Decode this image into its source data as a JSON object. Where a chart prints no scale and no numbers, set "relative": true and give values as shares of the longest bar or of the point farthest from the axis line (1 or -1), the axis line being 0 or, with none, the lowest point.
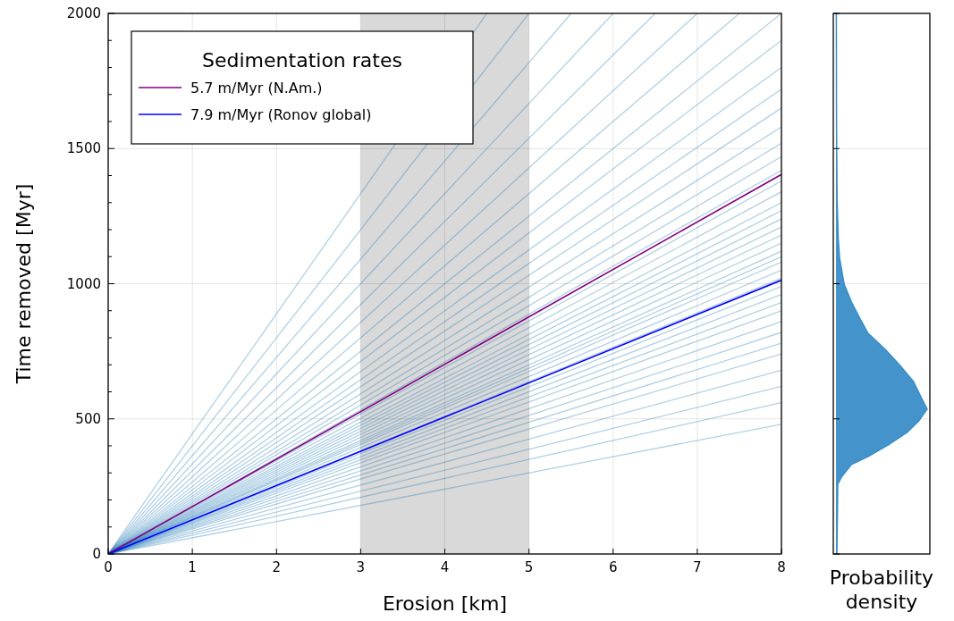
{
  "chart_data": [
    {
      "type": "line",
      "xlabel": "Erosion [km]",
      "ylabel": "Time removed [Myr]",
      "legend_title": "Sedimentation rates",
      "legend": "top left",
      "grid": true,
      "xlim": [
        0,
        8
      ],
      "xticks": [
        0,
        1,
        2,
        3,
        4,
        5,
        6,
        7,
        8
      ],
      "ylim": [
        0,
        2000
      ],
      "yticks": [
        0,
        {
          "value": 100,
          "label": null
        },
        {
          "value": 200,
          "label": null
        },
        {
          "value": 300,
          "label": null
        },
        {
          "value": 400,
          "label": null
        },
        500,
        {
          "value": 600,
          "label": null
        },
        {
          "value": 700,
          "label": null
        },
        {
          "value": 800,
          "label": null
        },
        {
          "value": 900,
          "label": null
        },
        1000,
        {
          "value": 1100,
          "label": null
        },
        {
          "value": 1200,
          "label": null
        },
        {
          "value": 1300,
          "label": null
        },
        {
          "value": 1400,
          "label": null
        },
        1500,
        {
          "value": 1600,
          "label": null
        },
        {
          "value": 1700,
          "label": null
        },
        {
          "value": 1800,
          "label": null
        },
        {
          "value": 1900,
          "label": null
        },
        2000
      ],
      "bands": [
        {
          "axis": "x",
          "from": 3,
          "to": 5,
          "color": "#d9d9d9"
        }
      ],
      "series": [
        {
          "color": "#1f77b4",
          "x": [
            0,
            8
          ],
          "values": [
            0,
            480
          ]
        },
        {
          "color": "#1f77b4",
          "x": [
            0,
            8
          ],
          "values": [
            0,
            560
          ]
        },
        {
          "color": "#1f77b4",
          "x": [
            0,
            8
          ],
          "values": [
            0,
            620
          ]
        },
        {
          "color": "#1f77b4",
          "x": [
            0,
            8
          ],
          "values": [
            0,
            680
          ]
        },
        {
          "color": "#1f77b4",
          "x": [
            0,
            8
          ],
          "values": [
            0,
            740
          ]
        },
        {
          "color": "#1f77b4",
          "x": [
            0,
            8
          ],
          "values": [
            0,
            780
          ]
        },
        {
          "color": "#1f77b4",
          "x": [
            0,
            8
          ],
          "values": [
            0,
            820
          ]
        },
        {
          "color": "#1f77b4",
          "x": [
            0,
            8
          ],
          "values": [
            0,
            860
          ]
        },
        {
          "color": "#1f77b4",
          "x": [
            0,
            8
          ],
          "values": [
            0,
            900
          ]
        },
        {
          "color": "#1f77b4",
          "x": [
            0,
            8
          ],
          "values": [
            0,
            930
          ]
        },
        {
          "color": "#1f77b4",
          "x": [
            0,
            8
          ],
          "values": [
            0,
            960
          ]
        },
        {
          "color": "#1f77b4",
          "x": [
            0,
            8
          ],
          "values": [
            0,
            990
          ]
        },
        {
          "color": "#1f77b4",
          "x": [
            0,
            8
          ],
          "values": [
            0,
            1020
          ]
        },
        {
          "color": "#1f77b4",
          "x": [
            0,
            8
          ],
          "values": [
            0,
            1050
          ]
        },
        {
          "color": "#1f77b4",
          "x": [
            0,
            8
          ],
          "values": [
            0,
            1080
          ]
        },
        {
          "color": "#1f77b4",
          "x": [
            0,
            8
          ],
          "values": [
            0,
            1100
          ]
        },
        {
          "color": "#1f77b4",
          "x": [
            0,
            8
          ],
          "values": [
            0,
            1120
          ]
        },
        {
          "color": "#1f77b4",
          "x": [
            0,
            8
          ],
          "values": [
            0,
            1150
          ]
        },
        {
          "color": "#1f77b4",
          "x": [
            0,
            8
          ],
          "values": [
            0,
            1180
          ]
        },
        {
          "color": "#1f77b4",
          "x": [
            0,
            8
          ],
          "values": [
            0,
            1210
          ]
        },
        {
          "color": "#1f77b4",
          "x": [
            0,
            8
          ],
          "values": [
            0,
            1240
          ]
        },
        {
          "color": "#1f77b4",
          "x": [
            0,
            8
          ],
          "values": [
            0,
            1270
          ]
        },
        {
          "color": "#1f77b4",
          "x": [
            0,
            8
          ],
          "values": [
            0,
            1300
          ]
        },
        {
          "color": "#1f77b4",
          "x": [
            0,
            8
          ],
          "values": [
            0,
            1340
          ]
        },
        {
          "color": "#1f77b4",
          "x": [
            0,
            8
          ],
          "values": [
            0,
            1380
          ]
        },
        {
          "color": "#1f77b4",
          "x": [
            0,
            8
          ],
          "values": [
            0,
            1420
          ]
        },
        {
          "color": "#1f77b4",
          "x": [
            0,
            8
          ],
          "values": [
            0,
            1470
          ]
        },
        {
          "color": "#1f77b4",
          "x": [
            0,
            8
          ],
          "values": [
            0,
            1520
          ]
        },
        {
          "color": "#1f77b4",
          "x": [
            0,
            8
          ],
          "values": [
            0,
            1580
          ]
        },
        {
          "color": "#1f77b4",
          "x": [
            0,
            8
          ],
          "values": [
            0,
            1650
          ]
        },
        {
          "color": "#1f77b4",
          "x": [
            0,
            8
          ],
          "values": [
            0,
            1720
          ]
        },
        {
          "color": "#1f77b4",
          "x": [
            0,
            8
          ],
          "values": [
            0,
            1800
          ]
        },
        {
          "color": "#1f77b4",
          "x": [
            0,
            8
          ],
          "values": [
            0,
            1900
          ]
        },
        {
          "color": "#1f77b4",
          "x": [
            0,
            8
          ],
          "values": [
            0,
            2000
          ]
        },
        {
          "color": "#1f77b4",
          "x": [
            0,
            7.5
          ],
          "values": [
            0,
            2000
          ]
        },
        {
          "color": "#1f77b4",
          "x": [
            0,
            7
          ],
          "values": [
            0,
            2000
          ]
        },
        {
          "color": "#1f77b4",
          "x": [
            0,
            6.5
          ],
          "values": [
            0,
            2000
          ]
        },
        {
          "color": "#1f77b4",
          "x": [
            0,
            6
          ],
          "values": [
            0,
            2000
          ]
        },
        {
          "color": "#1f77b4",
          "x": [
            0,
            5.5
          ],
          "values": [
            0,
            2000
          ]
        },
        {
          "color": "#1f77b4",
          "x": [
            0,
            5
          ],
          "values": [
            0,
            2000
          ]
        },
        {
          "color": "#1f77b4",
          "x": [
            0,
            4.5
          ],
          "values": [
            0,
            2000
          ]
        },
        {
          "name": "5.7 m/Myr (N.Am.)",
          "color": "#800080",
          "x": [
            0,
            8
          ],
          "values": [
            0,
            1404
          ]
        },
        {
          "name": "7.9 m/Myr (Ronov global)",
          "color": "#0000ff",
          "x": [
            0,
            8
          ],
          "values": [
            0,
            1013
          ]
        }
      ]
    },
    {
      "type": "area",
      "orientation": "horizontal",
      "relative": true,
      "xlabel": "Probability density",
      "grid": "y",
      "tick_labels": false,
      "ylim": [
        0,
        2000
      ],
      "yticks": [
        0,
        500,
        1000,
        1500,
        2000
      ],
      "series": [
        {
          "color": "#3a8ec8",
          "x": [
            0,
            258,
            287,
            331,
            360,
            403,
            450,
            493,
            536,
            582,
            638,
            698,
            757,
            817,
            873,
            932,
            998,
            1094,
            1167,
            1316,
            1600,
            2000
          ],
          "values": [
            0.01,
            0.02,
            0.065,
            0.17,
            0.35,
            0.57,
            0.78,
            0.91,
            1,
            0.93,
            0.85,
            0.7,
            0.54,
            0.35,
            0.26,
            0.17,
            0.09,
            0.04,
            0.025,
            0.012,
            0.006,
            0.004
          ]
        }
      ]
    }
  ]
}
